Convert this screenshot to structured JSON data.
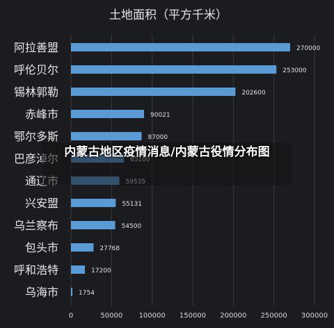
{
  "chart_data": {
    "type": "bar",
    "orientation": "horizontal",
    "title": "土地面积（平方千米）",
    "categories": [
      "阿拉善盟",
      "呼伦贝尔",
      "锡林郭勒",
      "赤峰市",
      "鄂尔多斯",
      "巴彦淖尔",
      "通辽市",
      "兴安盟",
      "乌兰察布",
      "包头市",
      "呼和浩特",
      "乌海市"
    ],
    "values": [
      270000,
      253000,
      202600,
      90021,
      87000,
      65100,
      59535,
      55131,
      54500,
      27768,
      17200,
      1754
    ],
    "value_labels": [
      "270000",
      "253000",
      "202600",
      "90021",
      "87000",
      "65100",
      "59535",
      "55131",
      "54500",
      "27768",
      "17200",
      "1754"
    ],
    "xlim": [
      0,
      300000
    ],
    "xticks": [
      "0",
      "50000",
      "100000",
      "150000",
      "200000",
      "250000",
      "300000"
    ],
    "grid": true,
    "bar_color": "#5b9bd5",
    "background_color": "#1b1c1f",
    "grid_color": "#3a3b3f"
  },
  "overlay": {
    "text": "内蒙古地区疫情消息/内蒙古役情分布图"
  }
}
